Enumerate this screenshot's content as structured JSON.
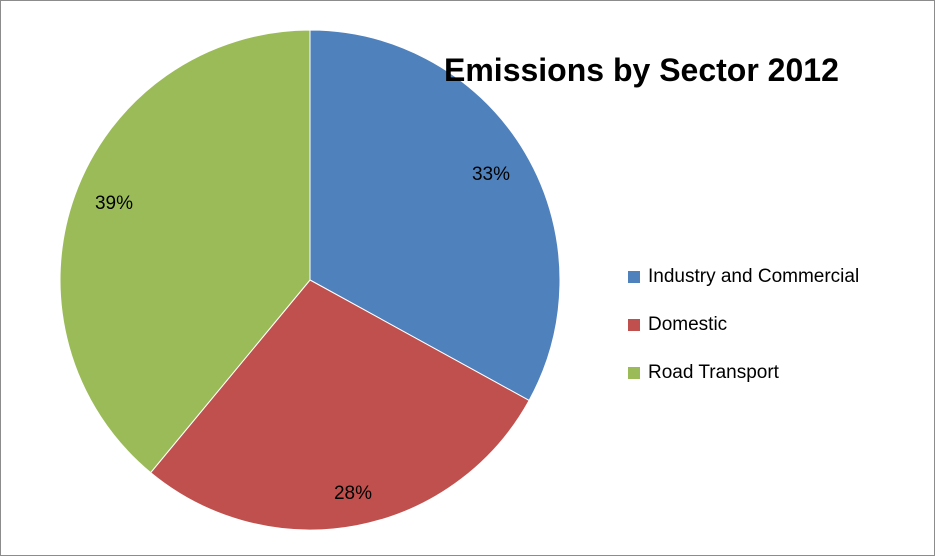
{
  "chart_data": {
    "type": "pie",
    "title": "Emissions by Sector 2012",
    "categories": [
      "Industry and Commercial",
      "Domestic",
      "Road Transport"
    ],
    "values": [
      33,
      28,
      39
    ],
    "data_labels": [
      "33%",
      "28%",
      "39%"
    ],
    "colors": [
      "#4f81bd",
      "#c0504d",
      "#9bbb59"
    ],
    "legend": {
      "placement": "right",
      "items": [
        "Industry and Commercial",
        "Domestic",
        "Road Transport"
      ]
    },
    "start_angle": "12 o'clock",
    "direction": "clockwise"
  }
}
